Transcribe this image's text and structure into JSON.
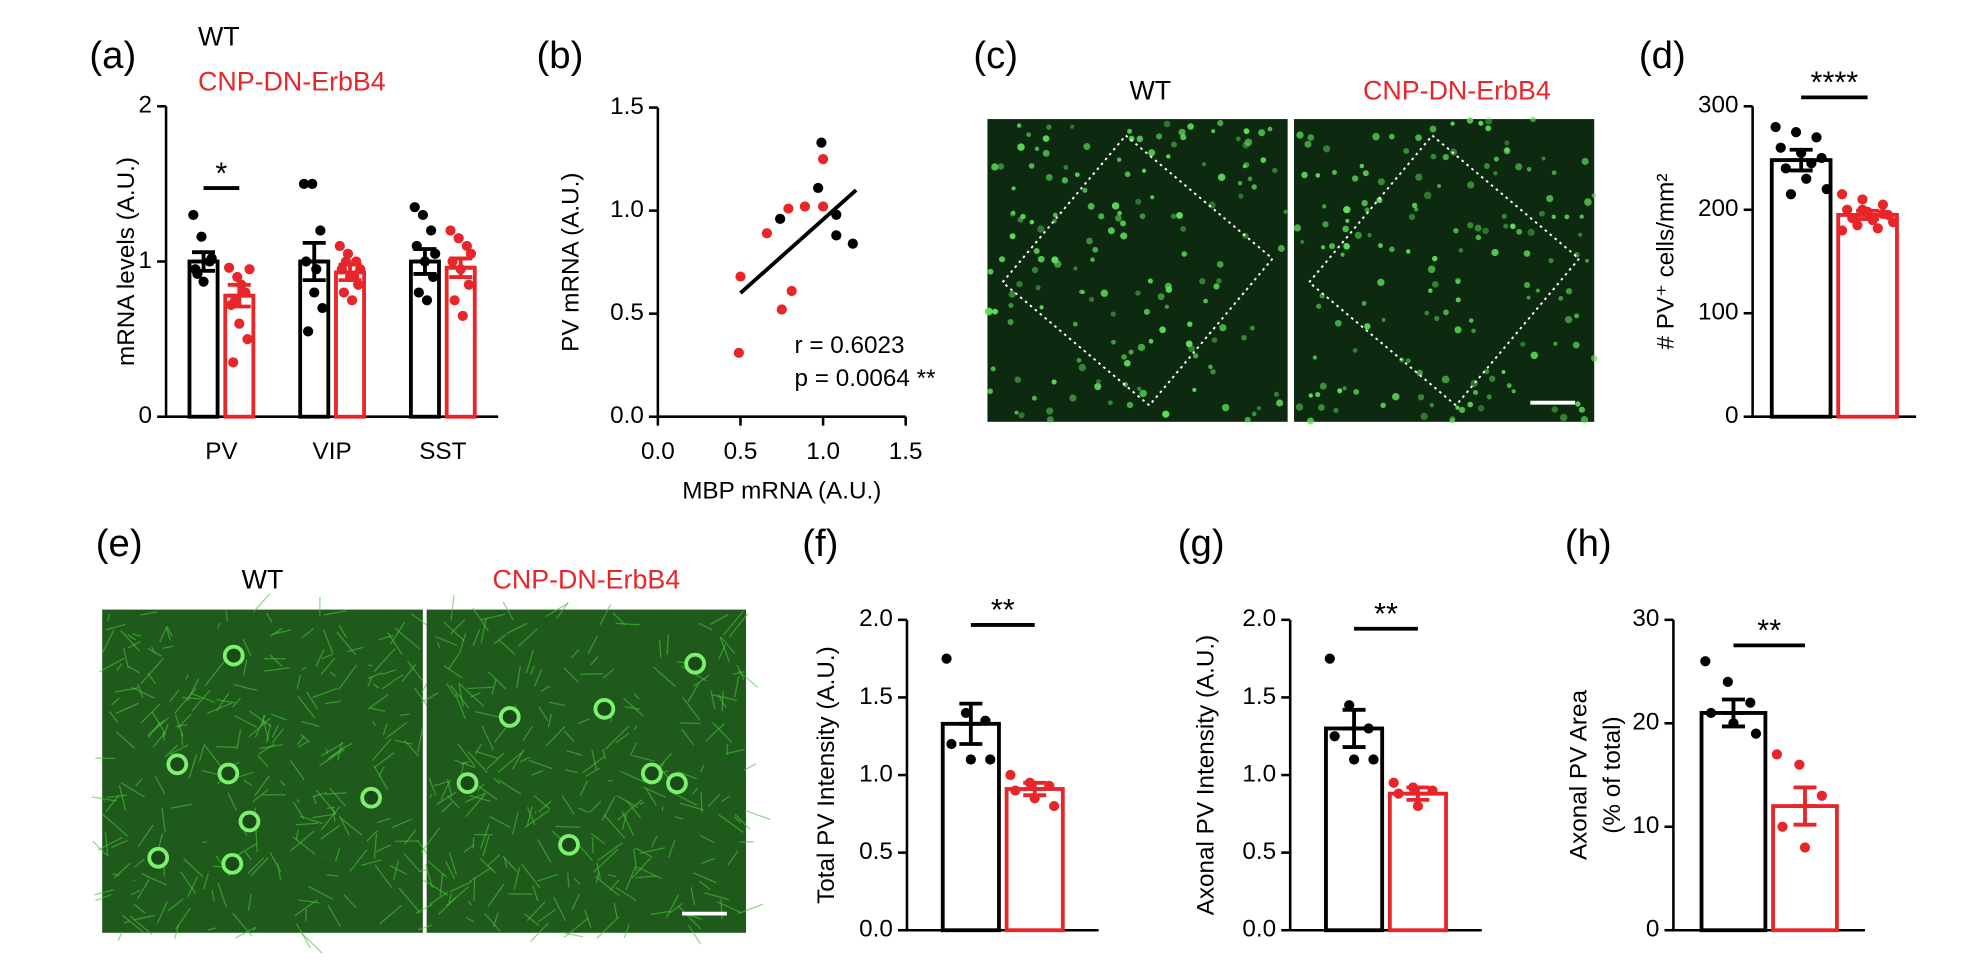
{
  "chart_data": [
    {
      "type": "bar",
      "panel": "(a)",
      "ylabel": "mRNA levels (A.U.)",
      "categories": [
        "PV",
        "VIP",
        "SST"
      ],
      "ylim": [
        0,
        2
      ],
      "yticks": [
        0,
        1,
        2
      ],
      "significance": "*",
      "series": [
        {
          "name": "WT",
          "color": "#000000",
          "values": [
            1.0,
            1.0,
            1.0
          ],
          "errors": [
            0.06,
            0.12,
            0.08
          ],
          "points": [
            [
              1.3,
              1.16,
              1.0,
              0.95,
              0.87,
              1.02,
              0.92
            ],
            [
              1.5,
              1.5,
              1.2,
              1.0,
              0.8,
              0.7,
              0.55,
              0.95
            ],
            [
              1.35,
              1.3,
              1.2,
              1.1,
              1.0,
              0.9,
              0.8,
              0.75,
              1.05
            ]
          ]
        },
        {
          "name": "CNP-DN-ErbB4",
          "color": "#e8262a",
          "values": [
            0.78,
            0.93,
            0.96
          ],
          "errors": [
            0.07,
            0.05,
            0.06
          ],
          "points": [
            [
              0.96,
              0.9,
              0.8,
              0.72,
              0.6,
              0.5,
              0.35,
              0.85,
              0.95,
              0.75
            ],
            [
              1.1,
              1.05,
              1.0,
              0.95,
              0.9,
              0.85,
              0.8,
              0.75,
              0.95,
              1.0,
              0.9
            ],
            [
              1.2,
              1.15,
              1.1,
              1.0,
              0.95,
              0.85,
              0.75,
              0.65,
              1.05
            ]
          ]
        }
      ]
    },
    {
      "type": "scatter",
      "panel": "(b)",
      "xlabel": "MBP mRNA (A.U.)",
      "ylabel": "PV mRNA (A.U.)",
      "xlim": [
        0,
        1.5
      ],
      "ylim": [
        0,
        1.5
      ],
      "xticks": [
        {
          "value": 0,
          "label": "0.0"
        },
        {
          "value": 0.5,
          "label": "0.5"
        },
        {
          "value": 1,
          "label": "1.0"
        },
        {
          "value": 1.5,
          "label": "1.5"
        }
      ],
      "yticks": [
        {
          "value": 0,
          "label": "0.0"
        },
        {
          "value": 0.5,
          "label": "0.5"
        },
        {
          "value": 1,
          "label": "1.0"
        },
        {
          "value": 1.5,
          "label": "1.5"
        }
      ],
      "series": [
        {
          "color": "#000000",
          "x": [
            0.99,
            0.97,
            0.74,
            1.08,
            1.08,
            1.18
          ],
          "values": [
            1.33,
            1.11,
            0.96,
            0.98,
            0.88,
            0.84
          ]
        },
        {
          "color": "#e8262a",
          "x": [
            1.0,
            0.66,
            0.79,
            0.89,
            1.0,
            0.5,
            0.81,
            0.75,
            0.49
          ],
          "values": [
            1.25,
            0.89,
            1.01,
            1.02,
            1.02,
            0.68,
            0.61,
            0.52,
            0.31
          ]
        }
      ],
      "trendline": {
        "x": [
          0.5,
          1.2
        ],
        "y": [
          0.6,
          1.1
        ]
      },
      "annotations": [
        "r = 0.6023",
        "p = 0.0064 **"
      ]
    },
    {
      "type": "image",
      "panel": "(c)",
      "titles": [
        "WT",
        "CNP-DN-ErbB4"
      ]
    },
    {
      "type": "bar",
      "panel": "(d)",
      "ylabel": "# PV⁺ cells/mm²",
      "categories": [
        null
      ],
      "ylim": [
        0,
        300
      ],
      "yticks": [
        0,
        100,
        200,
        300
      ],
      "significance": "****",
      "series": [
        {
          "name": "WT",
          "color": "#000000",
          "values": [
            248
          ],
          "errors": [
            10
          ],
          "points": [
            [
              280,
              275,
              270,
              260,
              255,
              250,
              240,
              230,
              220,
              215,
              245
            ]
          ]
        },
        {
          "name": "CNP-DN-ErbB4",
          "color": "#e8262a",
          "values": [
            195
          ],
          "errors": [
            4
          ],
          "points": [
            [
              215,
              210,
              205,
              200,
              198,
              195,
              192,
              190,
              188,
              185,
              182,
              180,
              200,
              196
            ]
          ]
        }
      ]
    },
    {
      "type": "image",
      "panel": "(e)",
      "titles": [
        "WT",
        "CNP-DN-ErbB4"
      ]
    },
    {
      "type": "bar",
      "panel": "(f)",
      "ylabel": "Total PV Intensity (A.U.)",
      "categories": [
        null
      ],
      "ylim": [
        0,
        2
      ],
      "yticks": [
        {
          "value": 0,
          "label": "0.0"
        },
        {
          "value": 0.5,
          "label": "0.5"
        },
        {
          "value": 1,
          "label": "1.0"
        },
        {
          "value": 1.5,
          "label": "1.5"
        },
        {
          "value": 2,
          "label": "2.0"
        }
      ],
      "significance": "**",
      "series": [
        {
          "name": "WT",
          "color": "#000000",
          "values": [
            1.33
          ],
          "errors": [
            0.13
          ],
          "points": [
            [
              1.75,
              1.4,
              1.35,
              1.2,
              1.1,
              1.1
            ]
          ]
        },
        {
          "name": "CNP-DN-ErbB4",
          "color": "#e8262a",
          "values": [
            0.91
          ],
          "errors": [
            0.04
          ],
          "points": [
            [
              1.0,
              0.95,
              0.93,
              0.9,
              0.85,
              0.8
            ]
          ]
        }
      ]
    },
    {
      "type": "bar",
      "panel": "(g)",
      "ylabel": "Axonal PV Intensity (A.U.)",
      "categories": [
        null
      ],
      "ylim": [
        0,
        2
      ],
      "yticks": [
        {
          "value": 0,
          "label": "0.0"
        },
        {
          "value": 0.5,
          "label": "0.5"
        },
        {
          "value": 1,
          "label": "1.0"
        },
        {
          "value": 1.5,
          "label": "1.5"
        },
        {
          "value": 2,
          "label": "2.0"
        }
      ],
      "significance": "**",
      "series": [
        {
          "name": "WT",
          "color": "#000000",
          "values": [
            1.3
          ],
          "errors": [
            0.12
          ],
          "points": [
            [
              1.75,
              1.45,
              1.3,
              1.25,
              1.1,
              1.1
            ]
          ]
        },
        {
          "name": "CNP-DN-ErbB4",
          "color": "#e8262a",
          "values": [
            0.88
          ],
          "errors": [
            0.04
          ],
          "points": [
            [
              0.95,
              0.92,
              0.9,
              0.88,
              0.8
            ]
          ]
        }
      ]
    },
    {
      "type": "bar",
      "panel": "(h)",
      "ylabel": [
        "Axonal PV Area",
        "(% of total)"
      ],
      "categories": [
        null
      ],
      "ylim": [
        0,
        30
      ],
      "yticks": [
        0,
        10,
        20,
        30
      ],
      "significance": "**",
      "series": [
        {
          "name": "WT",
          "color": "#000000",
          "values": [
            21
          ],
          "errors": [
            1.3
          ],
          "points": [
            [
              26,
              24,
              22,
              21,
              20,
              19
            ]
          ]
        },
        {
          "name": "CNP-DN-ErbB4",
          "color": "#e8262a",
          "values": [
            12
          ],
          "errors": [
            1.8
          ],
          "points": [
            [
              17,
              16,
              13,
              10,
              8
            ]
          ]
        }
      ]
    }
  ]
}
